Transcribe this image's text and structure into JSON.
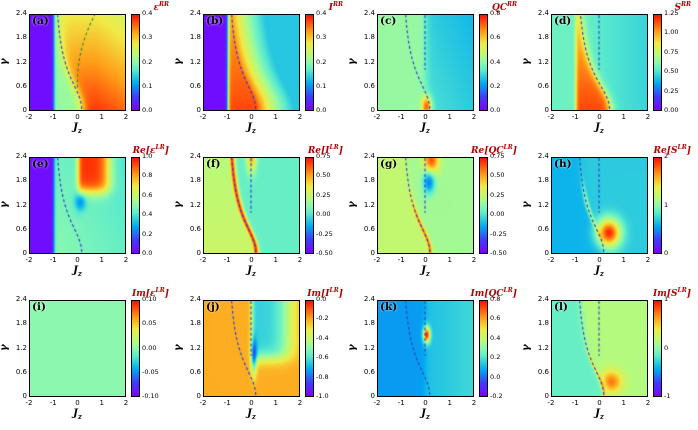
{
  "colors": {
    "title": "#b30000",
    "curve_blue": "#2a3bd0",
    "curve_green": "#2e8b2e",
    "axis": "#000000"
  },
  "chart_data": {
    "type": "heatmap",
    "grid": {
      "rows": 3,
      "cols": 4
    },
    "colormap": "rainbow",
    "colormap_stops": [
      [
        0.0,
        "#7f00ff"
      ],
      [
        0.14,
        "#403cff"
      ],
      [
        0.28,
        "#00aaf0"
      ],
      [
        0.42,
        "#5aebcd"
      ],
      [
        0.5,
        "#8cf8af"
      ],
      [
        0.58,
        "#b9fa78"
      ],
      [
        0.7,
        "#f0eb46"
      ],
      [
        0.82,
        "#ffa019"
      ],
      [
        1.0,
        "#ff0f00"
      ]
    ],
    "x": {
      "label_base": "J",
      "label_sub": "z",
      "min": -2,
      "max": 2,
      "ticks_left_to_right": [
        "-2",
        "-1",
        "0",
        "1",
        "2"
      ]
    },
    "y": {
      "label": "γ",
      "min": 0,
      "max": 2.4,
      "ticks_top_to_bottom": [
        "2.4",
        "1.8",
        "1.2",
        "0.6",
        "0"
      ]
    },
    "panels": [
      {
        "id": "a",
        "letter": "(a)",
        "title": {
          "pre": "",
          "sym": "ε",
          "sup": "RR",
          "post": ""
        },
        "cbar_ticks": [
          "0.4",
          "0.3",
          "0.2",
          "0.1",
          "0.0"
        ],
        "field": "a",
        "curves": [
          "main",
          "green"
        ],
        "note": "zero (purple) for Jz<-1; pale lens between Jz=-1 and dashed boundary; hot region up to ~0.45 for Jz>0, strongest at small γ"
      },
      {
        "id": "b",
        "letter": "(b)",
        "title": {
          "pre": "",
          "sym": "I",
          "sup": "RR",
          "post": ""
        },
        "cbar_ticks": [
          "0.4",
          "0.3",
          "0.2",
          "0.1",
          "0.0"
        ],
        "field": "b",
        "curves": [
          "main"
        ],
        "note": "zero (purple) for Jz<-1; red-orange maximum hugging dashed boundary, decaying to cyan at large Jz"
      },
      {
        "id": "c",
        "letter": "(c)",
        "title": {
          "pre": "",
          "sym": "QC",
          "sup": "RR",
          "post": ""
        },
        "cbar_ticks": [
          "0.8",
          "0.6",
          "0.4",
          "0.2",
          "0.0"
        ],
        "field": "c",
        "curves": [
          "main",
          "vertical"
        ],
        "note": "light green ~0.5 left of Jz=0 boundary, cooler cyan on right; small warm spot near origin"
      },
      {
        "id": "d",
        "letter": "(d)",
        "title": {
          "pre": "",
          "sym": "S",
          "sup": "RR",
          "post": ""
        },
        "cbar_ticks": [
          "1.25",
          "1.00",
          "0.75",
          "0.50",
          "0.25",
          "0.00"
        ],
        "field": "d",
        "curves": [
          "mainD",
          "vertical"
        ],
        "note": "hot lens (~1.2) between Jz=-1 and dashed boundary, narrowing with γ; cyan elsewhere"
      },
      {
        "id": "e",
        "letter": "(e)",
        "title": {
          "pre": "Re[",
          "sym": "ε",
          "sup": "LR",
          "post": "]"
        },
        "cbar_ticks": [
          "1.0",
          "0.8",
          "0.6",
          "0.4",
          "0.2",
          "0.0"
        ],
        "field": "e",
        "curves": [
          "main"
        ],
        "note": "purple for Jz<-1; teal-green background; sharp red block (~1.0) for 0<Jz<1.3 and γ>1.6 with dark pocket below it"
      },
      {
        "id": "f",
        "letter": "(f)",
        "title": {
          "pre": "Re[",
          "sym": "I",
          "sup": "LR",
          "post": "]"
        },
        "cbar_ticks": [
          "0.75",
          "0.50",
          "0.25",
          "0.00",
          "-0.25",
          "-0.50"
        ],
        "field": "f",
        "curves": [
          "main",
          "vertical"
        ],
        "note": "yellow-green left of dashed boundary, cyan right; thin red ridge along boundary and warm spike at top near Jz=0"
      },
      {
        "id": "g",
        "letter": "(g)",
        "title": {
          "pre": "Re[",
          "sym": "QC",
          "sup": "LR",
          "post": "]"
        },
        "cbar_ticks": [
          "0.75",
          "0.50",
          "0.25",
          "0.00",
          "-0.25",
          "-0.50"
        ],
        "field": "g",
        "curves": [
          "main",
          "vertical"
        ],
        "note": "olive background; red blob near (Jz≈0.25, γ≈2.3), blue pocket below it; thin warm ridge on lower boundary"
      },
      {
        "id": "h",
        "letter": "(h)",
        "title": {
          "pre": "Re[",
          "sym": "S",
          "sup": "LR",
          "post": "]"
        },
        "cbar_ticks": [
          "2",
          "1",
          "0"
        ],
        "field": "h",
        "curves": [
          "main",
          "vertical"
        ],
        "note": "blue background; intense red-orange blob (~2) near (Jz≈0.4, γ≈0.5) along the dashed boundary tail"
      },
      {
        "id": "i",
        "letter": "(i)",
        "title": {
          "pre": "Im[",
          "sym": "ε",
          "sup": "LR",
          "post": "]"
        },
        "cbar_ticks": [
          "0.10",
          "0.05",
          "0.00",
          "-0.05",
          "-0.10"
        ],
        "field": "i",
        "curves": [],
        "note": "uniform ~0 (light green) everywhere"
      },
      {
        "id": "j",
        "letter": "(j)",
        "title": {
          "pre": "Im[",
          "sym": "I",
          "sup": "LR",
          "post": "]"
        },
        "cbar_ticks": [
          "0.0",
          "-0.2",
          "-0.4",
          "-0.6",
          "-0.8",
          "-1.0"
        ],
        "field": "j",
        "curves": [
          "main",
          "vertical"
        ],
        "note": "mostly orange (~-0.1); cyan-blue pocket (~-0.6) for 0<Jz<1.5, γ>1 with dark streak near Jz≈0.1"
      },
      {
        "id": "k",
        "letter": "(k)",
        "title": {
          "pre": "Im[",
          "sym": "QC",
          "sup": "LR",
          "post": "]"
        },
        "cbar_ticks": [
          "0.8",
          "0.6",
          "0.4",
          "0.2",
          "0.0",
          "-0.2"
        ],
        "field": "k",
        "curves": [
          "main",
          "vertical"
        ],
        "note": "mostly blue (~0); slightly lighter right of Jz=0; small red hotspot (~0.8) near (Jz≈0, γ≈1.55)"
      },
      {
        "id": "l",
        "letter": "(l)",
        "title": {
          "pre": "Im[",
          "sym": "S",
          "sup": "LR",
          "post": "]"
        },
        "cbar_ticks": [
          "1",
          "0",
          "-1"
        ],
        "field": "l",
        "curves": [
          "main",
          "vertical"
        ],
        "note": "cyan left of boundary, light green right; warm orange band near boundary tail at small γ"
      }
    ]
  }
}
